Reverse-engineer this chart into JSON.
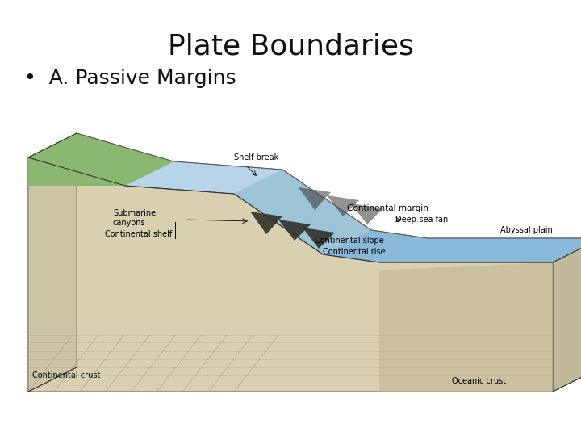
{
  "title": "Plate Boundaries",
  "bullet": "•  A. Passive Margins",
  "bg_color": "#ffffff",
  "title_fontsize": 26,
  "bullet_fontsize": 18,
  "title_color": "#111111",
  "bullet_color": "#111111",
  "diagram": {
    "labels": {
      "continental_margin": "Continental margin",
      "shelf_break": "Shelf break",
      "submarine_canyons": "Submarine\ncanyons",
      "continental_shelf": "Continental shelf",
      "deep_sea_fan": "Deep-sea fan",
      "abyssal_plain": "Abyssal plain",
      "continental_slope": "Continental slope",
      "continental_rise": "Continental rise",
      "continental_crust": "Continental crust",
      "oceanic_crust": "Oceanic crust"
    },
    "colors": {
      "land_green": "#8ab870",
      "land_brown": "#c8a870",
      "shelf_water": "#b0cce0",
      "deep_water": "#8ab8d8",
      "cont_crust_light": "#ddd5b8",
      "cont_crust_mid": "#ccc5a8",
      "cont_crust_dark": "#bbb098",
      "oce_crust": "#c0b490",
      "sandy": "#d8d0b0",
      "canyon_dark": "#2a2820",
      "outline": "#555555",
      "label_line": "#000000"
    }
  }
}
